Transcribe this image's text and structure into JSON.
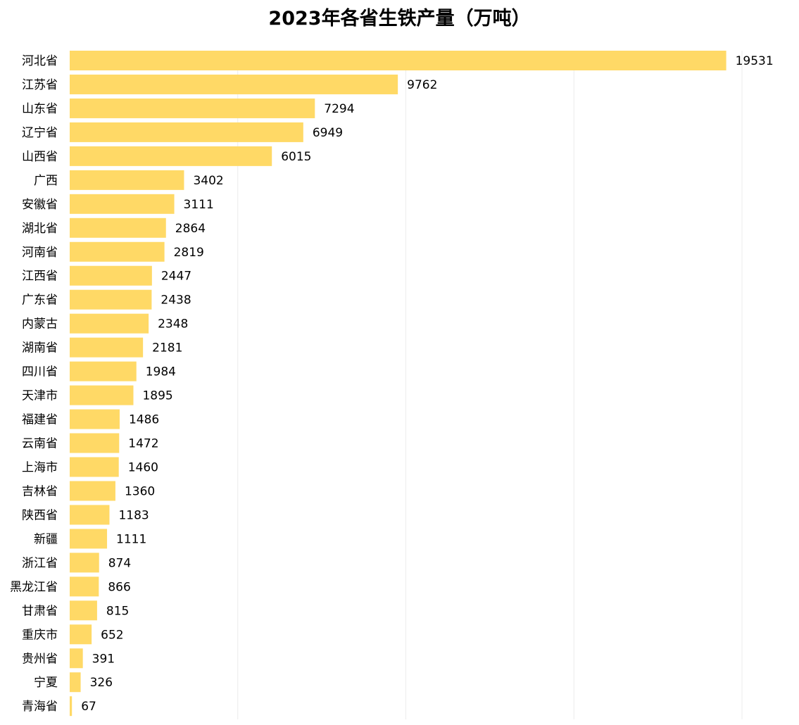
{
  "chart_data": {
    "type": "bar",
    "orientation": "horizontal",
    "title": "2023年各省生铁产量（万吨）",
    "xlabel": "",
    "ylabel": "",
    "xlim": [
      0,
      20000
    ],
    "grid": true,
    "bar_color": "#FFD966",
    "categories": [
      "河北省",
      "江苏省",
      "山东省",
      "辽宁省",
      "山西省",
      "广西",
      "安徽省",
      "湖北省",
      "河南省",
      "江西省",
      "广东省",
      "内蒙古",
      "湖南省",
      "四川省",
      "天津市",
      "福建省",
      "云南省",
      "上海市",
      "吉林省",
      "陕西省",
      "新疆",
      "浙江省",
      "黑龙江省",
      "甘肃省",
      "重庆市",
      "贵州省",
      "宁夏",
      "青海省"
    ],
    "values": [
      19531,
      9762,
      7294,
      6949,
      6015,
      3402,
      3111,
      2864,
      2819,
      2447,
      2438,
      2348,
      2181,
      1984,
      1895,
      1486,
      1472,
      1460,
      1360,
      1183,
      1111,
      874,
      866,
      815,
      652,
      391,
      326,
      67
    ]
  }
}
